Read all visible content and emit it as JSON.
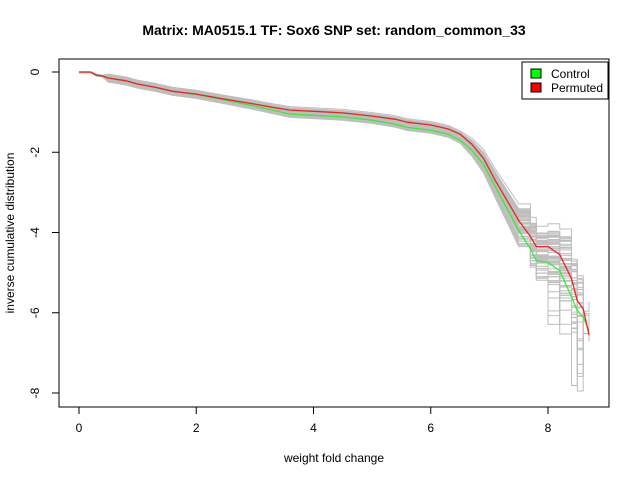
{
  "chart_data": {
    "type": "line",
    "title": "Matrix: MA0515.1 TF: Sox6 SNP set: random_common_33",
    "xlabel": "weight fold change",
    "ylabel": "inverse cumulative distribution",
    "xlim": [
      0,
      8.85
    ],
    "ylim": [
      -8.1,
      0.2
    ],
    "xticks": [
      0,
      2,
      4,
      6,
      8
    ],
    "yticks": [
      0,
      -2,
      -4,
      -6,
      -8
    ],
    "legend": {
      "placement": "top-right",
      "entries": [
        {
          "label": "Control",
          "color": "#00ff00"
        },
        {
          "label": "Permuted",
          "color": "#ff0000"
        }
      ]
    },
    "background_series": {
      "count": 60,
      "color": "#bebebe"
    },
    "series": [
      {
        "name": "Control",
        "color": "#33ee33",
        "x": [
          0,
          0.2,
          0.3,
          0.4,
          0.5,
          0.8,
          1.0,
          1.3,
          1.6,
          2.0,
          2.5,
          3.0,
          3.3,
          3.6,
          4.0,
          4.5,
          5.0,
          5.4,
          5.6,
          6.0,
          6.3,
          6.5,
          6.7,
          6.9,
          7.1,
          7.3,
          7.5,
          7.7,
          7.8,
          8.0,
          8.2,
          8.4,
          8.5,
          8.6,
          8.7
        ],
        "y": [
          0,
          0,
          -0.08,
          -0.1,
          -0.15,
          -0.22,
          -0.3,
          -0.38,
          -0.48,
          -0.56,
          -0.7,
          -0.85,
          -0.95,
          -1.05,
          -1.08,
          -1.12,
          -1.2,
          -1.3,
          -1.38,
          -1.45,
          -1.55,
          -1.7,
          -1.95,
          -2.3,
          -2.85,
          -3.4,
          -3.95,
          -4.4,
          -4.7,
          -4.75,
          -4.95,
          -5.6,
          -5.95,
          -6.1,
          -6.45
        ]
      },
      {
        "name": "Permuted",
        "color": "#ee2222",
        "x": [
          0,
          0.2,
          0.3,
          0.4,
          0.5,
          0.8,
          1.0,
          1.3,
          1.6,
          2.0,
          2.5,
          3.0,
          3.3,
          3.6,
          4.0,
          4.5,
          5.0,
          5.4,
          5.6,
          6.0,
          6.3,
          6.5,
          6.7,
          6.9,
          7.1,
          7.3,
          7.5,
          7.7,
          7.8,
          8.0,
          8.2,
          8.4,
          8.5,
          8.6,
          8.7
        ],
        "y": [
          0,
          0,
          -0.08,
          -0.1,
          -0.15,
          -0.22,
          -0.3,
          -0.38,
          -0.48,
          -0.55,
          -0.68,
          -0.8,
          -0.88,
          -0.95,
          -0.98,
          -1.02,
          -1.1,
          -1.18,
          -1.25,
          -1.32,
          -1.42,
          -1.55,
          -1.8,
          -2.15,
          -2.7,
          -3.2,
          -3.7,
          -4.1,
          -4.35,
          -4.35,
          -4.55,
          -5.15,
          -5.7,
          -5.9,
          -6.55
        ]
      }
    ]
  }
}
